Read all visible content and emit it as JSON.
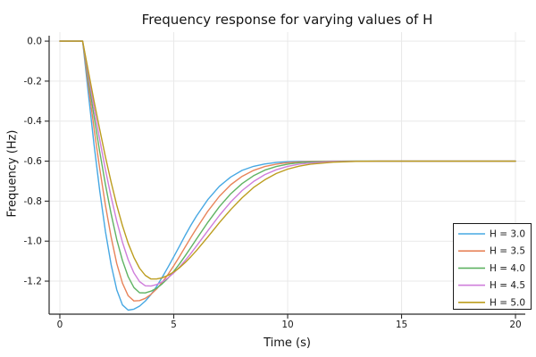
{
  "title": "Frequency response for varying values of H",
  "chart_data": {
    "type": "line",
    "title": "Frequency response for varying values of H",
    "xlabel": "Time (s)",
    "ylabel": "Frequency (Hz)",
    "xlim": [
      -0.47,
      20.43
    ],
    "ylim": [
      -1.365,
      0.045
    ],
    "xticks": [
      0,
      5,
      10,
      15,
      20
    ],
    "xtick_labels": [
      "0",
      "5",
      "10",
      "15",
      "20"
    ],
    "yticks": [
      0.0,
      -0.2,
      -0.4,
      -0.6,
      -0.8,
      -1.0,
      -1.2
    ],
    "ytick_labels": [
      "0.0",
      "-0.2",
      "-0.4",
      "-0.6",
      "-0.8",
      "-1.0",
      "-1.2"
    ],
    "grid": true,
    "grid_color": "#e9e9e9",
    "axis_color": "#2a2a2a",
    "background": "#ffffff",
    "legend_position": "lower right",
    "legend_border_color": "#1a1a1a",
    "steady_state_value": -0.6,
    "x": [
      0,
      1,
      1.25,
      1.5,
      1.75,
      2,
      2.25,
      2.5,
      2.75,
      3,
      3.25,
      3.5,
      3.75,
      4,
      4.25,
      4.5,
      4.75,
      5,
      5.25,
      5.5,
      5.75,
      6,
      6.5,
      7,
      7.5,
      8,
      8.5,
      9,
      9.5,
      10,
      10.5,
      11,
      12,
      13,
      14,
      16,
      18,
      20
    ],
    "series": [
      {
        "name": "H = 3.0",
        "color": "#47A8E3",
        "values": [
          0,
          0,
          -0.262,
          -0.515,
          -0.747,
          -0.951,
          -1.118,
          -1.243,
          -1.319,
          -1.345,
          -1.34,
          -1.325,
          -1.3,
          -1.267,
          -1.226,
          -1.18,
          -1.13,
          -1.078,
          -1.025,
          -0.972,
          -0.921,
          -0.874,
          -0.791,
          -0.726,
          -0.679,
          -0.646,
          -0.626,
          -0.614,
          -0.607,
          -0.603,
          -0.601,
          -0.601,
          -0.6,
          -0.6,
          -0.6,
          -0.6,
          -0.6,
          -0.6
        ]
      },
      {
        "name": "H = 3.5",
        "color": "#E8845A",
        "values": [
          0,
          0,
          -0.221,
          -0.435,
          -0.637,
          -0.82,
          -0.98,
          -1.112,
          -1.21,
          -1.273,
          -1.299,
          -1.297,
          -1.286,
          -1.266,
          -1.239,
          -1.205,
          -1.166,
          -1.123,
          -1.077,
          -1.03,
          -0.982,
          -0.936,
          -0.849,
          -0.776,
          -0.718,
          -0.676,
          -0.646,
          -0.627,
          -0.615,
          -0.608,
          -0.604,
          -0.602,
          -0.6,
          -0.6,
          -0.6,
          -0.6,
          -0.6,
          -0.6
        ]
      },
      {
        "name": "H = 4.0",
        "color": "#5FB363",
        "values": [
          0,
          0,
          -0.19,
          -0.375,
          -0.552,
          -0.716,
          -0.864,
          -0.992,
          -1.097,
          -1.178,
          -1.232,
          -1.258,
          -1.259,
          -1.25,
          -1.235,
          -1.213,
          -1.185,
          -1.151,
          -1.114,
          -1.074,
          -1.032,
          -0.989,
          -0.905,
          -0.828,
          -0.763,
          -0.712,
          -0.673,
          -0.645,
          -0.627,
          -0.615,
          -0.608,
          -0.604,
          -0.601,
          -0.6,
          -0.6,
          -0.6,
          -0.6,
          -0.6
        ]
      },
      {
        "name": "H = 4.5",
        "color": "#CF7EDB",
        "values": [
          0,
          0,
          -0.168,
          -0.333,
          -0.492,
          -0.642,
          -0.779,
          -0.9,
          -1.006,
          -1.093,
          -1.159,
          -1.202,
          -1.223,
          -1.224,
          -1.217,
          -1.203,
          -1.184,
          -1.159,
          -1.13,
          -1.097,
          -1.062,
          -1.024,
          -0.947,
          -0.872,
          -0.804,
          -0.747,
          -0.702,
          -0.667,
          -0.643,
          -0.626,
          -0.615,
          -0.609,
          -0.602,
          -0.601,
          -0.6,
          -0.6,
          -0.6,
          -0.6
        ]
      },
      {
        "name": "H = 5.0",
        "color": "#BC9D1E",
        "values": [
          0,
          0,
          -0.15,
          -0.298,
          -0.441,
          -0.578,
          -0.705,
          -0.82,
          -0.923,
          -1.011,
          -1.081,
          -1.135,
          -1.171,
          -1.189,
          -1.189,
          -1.183,
          -1.171,
          -1.154,
          -1.133,
          -1.107,
          -1.078,
          -1.047,
          -0.978,
          -0.908,
          -0.842,
          -0.783,
          -0.732,
          -0.693,
          -0.662,
          -0.64,
          -0.625,
          -0.615,
          -0.605,
          -0.601,
          -0.6,
          -0.6,
          -0.6,
          -0.6
        ]
      }
    ]
  }
}
